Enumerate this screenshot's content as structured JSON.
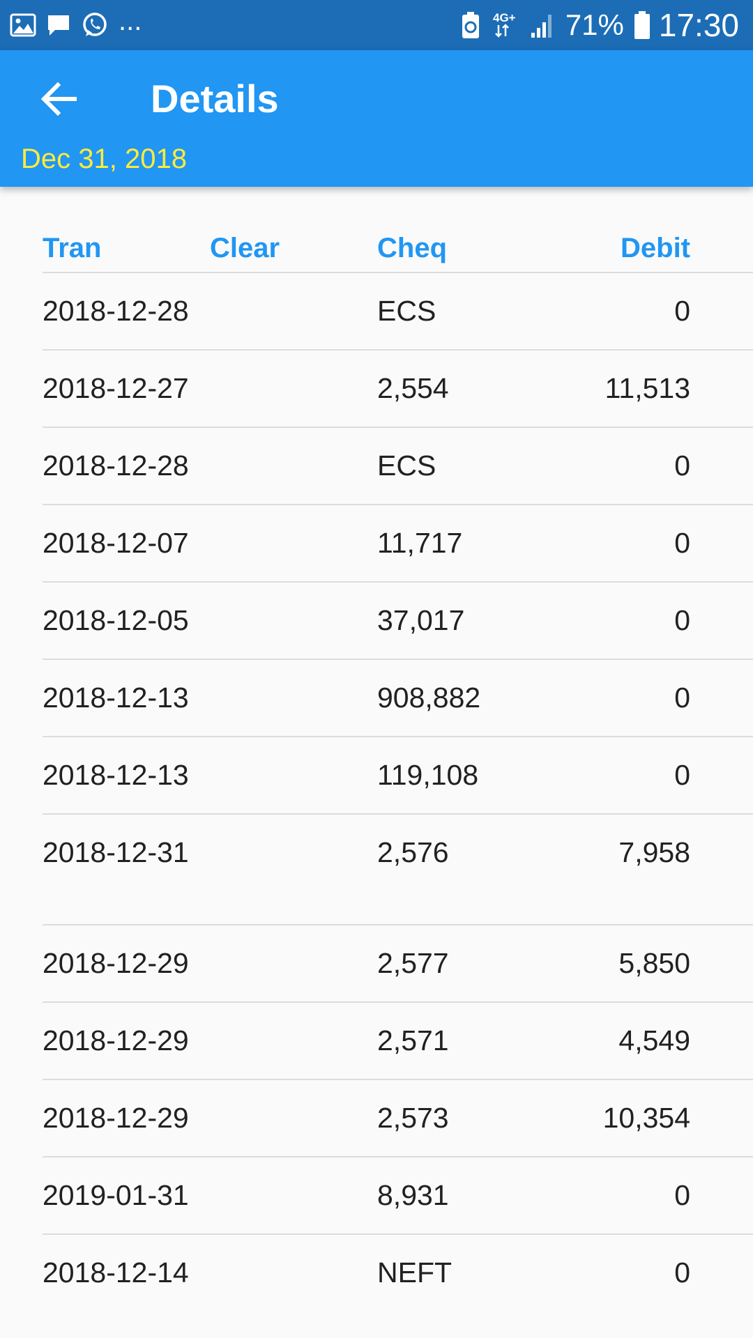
{
  "status_bar": {
    "left_icons": [
      "image-icon",
      "message-icon",
      "whatsapp-icon"
    ],
    "ellipsis": "...",
    "network": "4G+",
    "battery_percent": "71%",
    "time": "17:30"
  },
  "app_bar": {
    "title": "Details",
    "subtitle": "Dec 31, 2018",
    "back_icon": "arrow-back-icon"
  },
  "table": {
    "headers": {
      "tran": "Tran",
      "clear": "Clear",
      "cheq": "Cheq",
      "debit": "Debit"
    },
    "rows": [
      {
        "tran": "2018-12-28",
        "clear": "",
        "cheq": "ECS",
        "debit": "0"
      },
      {
        "tran": "2018-12-27",
        "clear": "",
        "cheq": "2,554",
        "debit": "11,513"
      },
      {
        "tran": "2018-12-28",
        "clear": "",
        "cheq": "ECS",
        "debit": "0"
      },
      {
        "tran": "2018-12-07",
        "clear": "",
        "cheq": "11,717",
        "debit": "0"
      },
      {
        "tran": "2018-12-05",
        "clear": "",
        "cheq": "37,017",
        "debit": "0"
      },
      {
        "tran": "2018-12-13",
        "clear": "",
        "cheq": "908,882",
        "debit": "0"
      },
      {
        "tran": "2018-12-13",
        "clear": "",
        "cheq": "119,108",
        "debit": "0"
      },
      {
        "tran": "2018-12-31",
        "clear": "",
        "cheq": "2,576",
        "debit": "7,958"
      },
      {
        "tran": "2018-12-29",
        "clear": "",
        "cheq": "2,577",
        "debit": "5,850"
      },
      {
        "tran": "2018-12-29",
        "clear": "",
        "cheq": "2,571",
        "debit": "4,549"
      },
      {
        "tran": "2018-12-29",
        "clear": "",
        "cheq": "2,573",
        "debit": "10,354"
      },
      {
        "tran": "2019-01-31",
        "clear": "",
        "cheq": "8,931",
        "debit": "0"
      },
      {
        "tran": "2018-12-14",
        "clear": "",
        "cheq": "NEFT",
        "debit": "0"
      }
    ]
  },
  "colors": {
    "status_bar": "#1c6db5",
    "app_bar": "#2196f3",
    "subtitle": "#ffeb3b",
    "header_text": "#2196f3",
    "body_text": "#212121",
    "divider": "#dcdcdc",
    "background": "#fafafa"
  }
}
